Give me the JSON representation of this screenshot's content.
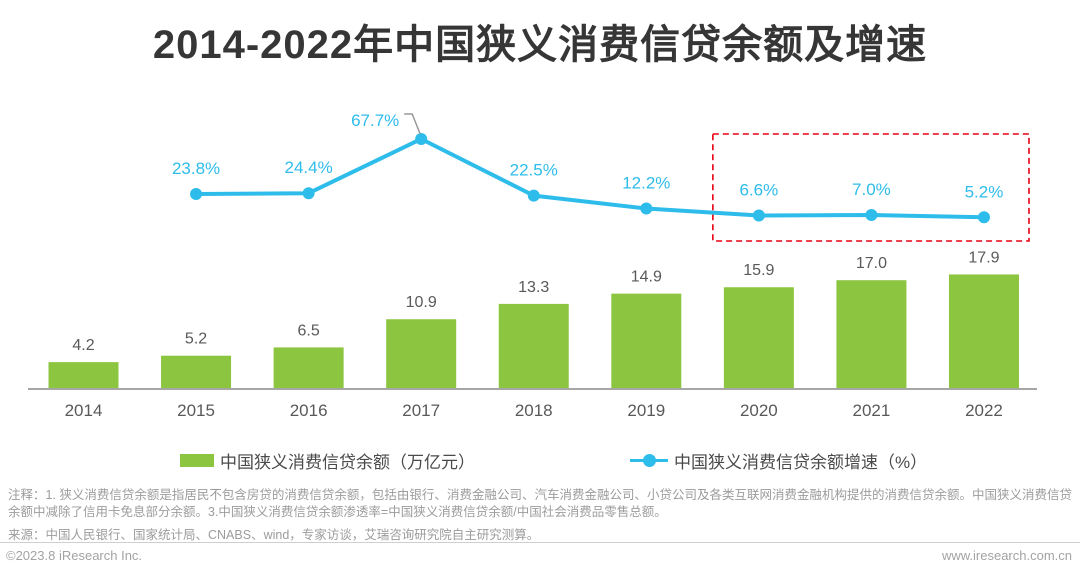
{
  "page": {
    "title": "2014-2022年中国狭义消费信贷余额及增速",
    "notes": "注释：1. 狭义消费信贷余额是指居民不包含房贷的消费信贷余额，包括由银行、消费金融公司、汽车消费金融公司、小贷公司及各类互联网消费金融机构提供的消费信贷余额。中国狭义消费信贷余额中减除了信用卡免息部分余额。3.中国狭义消费信贷余额渗透率=中国狭义消费信贷余额/中国社会消费品零售总额。",
    "source": "来源：中国人民银行、国家统计局、CNABS、wind，专家访谈，艾瑞咨询研究院自主研究测算。",
    "footer": {
      "copyright": "©2023.8 iResearch Inc.",
      "website": "www.iresearch.com.cn"
    }
  },
  "legend": [
    {
      "label": "中国狭义消费信贷余额（万亿元）",
      "marker": "bar-swatch",
      "color": "#8CC540"
    },
    {
      "label": "中国狭义消费信贷余额增速（%）",
      "marker": "line-dot",
      "color": "#2EBCEA"
    }
  ],
  "colors": {
    "bar": "#8CC540",
    "line": "#2EBCEA",
    "axis": "#A6A6A6",
    "bar_label": "#595959",
    "year_label": "#595959",
    "pct_label": "#2EBCEA",
    "highlight_box": "#E60012",
    "callout_connector": "#999999"
  },
  "chart_data": {
    "type": "bar+line",
    "title": "2014-2022年中国狭义消费信贷余额及增速",
    "categories": [
      "2014",
      "2015",
      "2016",
      "2017",
      "2018",
      "2019",
      "2020",
      "2021",
      "2022"
    ],
    "series": [
      {
        "name": "中国狭义消费信贷余额（万亿元）",
        "type": "bar",
        "values": [
          4.2,
          5.2,
          6.5,
          10.9,
          13.3,
          14.9,
          15.9,
          17.0,
          17.9
        ],
        "labels": [
          "4.2",
          "5.2",
          "6.5",
          "10.9",
          "13.3",
          "14.9",
          "15.9",
          "17.0",
          "17.9"
        ]
      },
      {
        "name": "中国狭义消费信贷余额增速（%）",
        "type": "line",
        "values": [
          null,
          23.8,
          24.4,
          67.7,
          22.5,
          12.2,
          6.6,
          7.0,
          5.2
        ],
        "labels": [
          "",
          "23.8%",
          "24.4%",
          "67.7%",
          "22.5%",
          "12.2%",
          "6.6%",
          "7.0%",
          "5.2%"
        ]
      }
    ],
    "highlight": {
      "from": "2020",
      "to": "2022",
      "style": "red-dashed-box"
    },
    "xlabel": "",
    "ylabel_left": "万亿元",
    "ylabel_right": "%",
    "grid": false,
    "legend_position": "bottom"
  }
}
